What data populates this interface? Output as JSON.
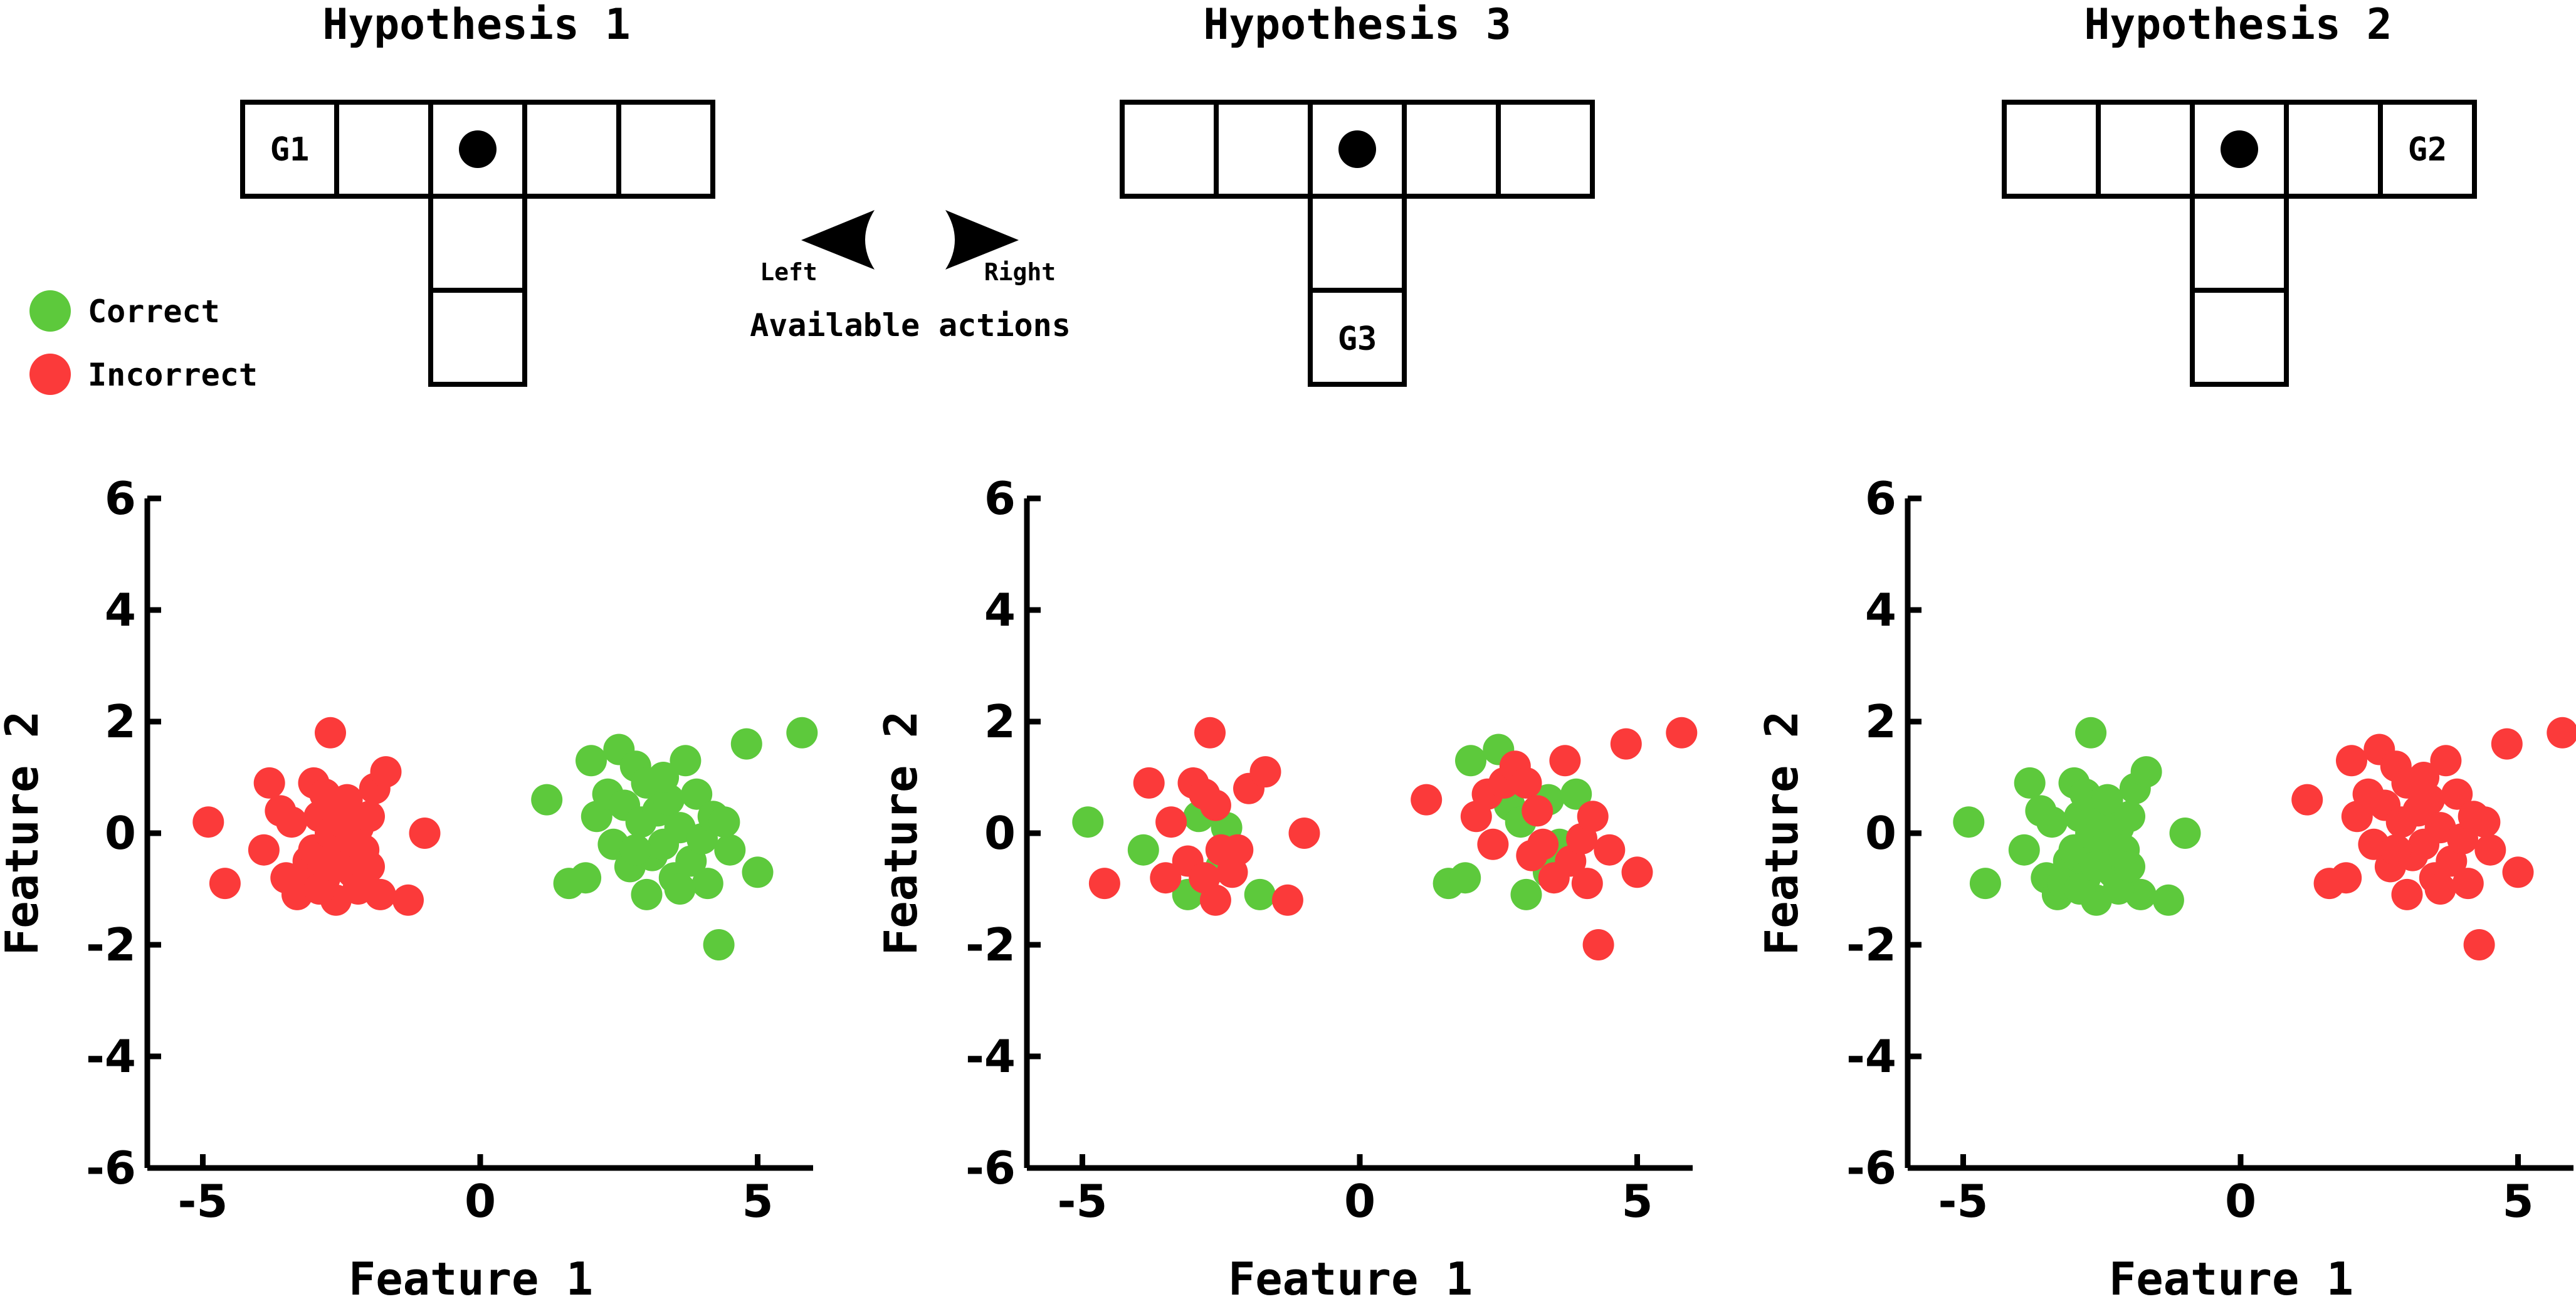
{
  "colors": {
    "correct": "#5dc93c",
    "incorrect": "#fb3a3a",
    "line": "#000000"
  },
  "legend": {
    "items": [
      {
        "label": "Correct",
        "color": "#5dc93c"
      },
      {
        "label": "Incorrect",
        "color": "#fb3a3a"
      }
    ]
  },
  "actions": {
    "left_label": "Left",
    "right_label": "Right",
    "caption": "Available actions",
    "left_icon": "arrow-left-icon",
    "right_icon": "arrow-right-icon",
    "agent_icon": "agent-dot-icon"
  },
  "hypotheses": [
    {
      "title": "Hypothesis 1",
      "goal_label": "G1",
      "goal_cell": "left-end"
    },
    {
      "title": "Hypothesis 3",
      "goal_label": "G3",
      "goal_cell": "bottom"
    },
    {
      "title": "Hypothesis 2",
      "goal_label": "G2",
      "goal_cell": "right-end"
    }
  ],
  "chart_data": [
    {
      "type": "scatter",
      "title": "",
      "xlabel": "Feature 1",
      "ylabel": "Feature 2",
      "xlim": [
        -6,
        6
      ],
      "ylim": [
        -6,
        6
      ],
      "xticks": [
        "-5",
        "0",
        "5"
      ],
      "yticks": [
        "-6",
        "-4",
        "-2",
        "0",
        "2",
        "4",
        "6"
      ],
      "xtick_values": [
        -5,
        0,
        5
      ],
      "ytick_values": [
        -6,
        -4,
        -2,
        0,
        2,
        4,
        6
      ],
      "series": [
        {
          "name": "Incorrect",
          "color": "#fb3a3a",
          "points": [
            [
              -4.9,
              0.2
            ],
            [
              -4.6,
              -0.9
            ],
            [
              -3.8,
              0.9
            ],
            [
              -3.9,
              -0.3
            ],
            [
              -3.5,
              -0.8
            ],
            [
              -3.4,
              0.2
            ],
            [
              -3.3,
              -1.1
            ],
            [
              -3.1,
              -0.5
            ],
            [
              -3.0,
              0.9
            ],
            [
              -3.0,
              -0.3
            ],
            [
              -2.9,
              0.3
            ],
            [
              -2.8,
              0.7
            ],
            [
              -2.8,
              -0.8
            ],
            [
              -2.7,
              0.0
            ],
            [
              -2.7,
              1.8
            ],
            [
              -2.6,
              -1.2
            ],
            [
              -2.6,
              0.5
            ],
            [
              -2.5,
              -0.3
            ],
            [
              -2.5,
              0.2
            ],
            [
              -2.4,
              0.6
            ],
            [
              -2.3,
              -0.7
            ],
            [
              -2.2,
              0.1
            ],
            [
              -2.1,
              -0.3
            ],
            [
              -2.0,
              0.3
            ],
            [
              -1.9,
              0.8
            ],
            [
              -1.8,
              -1.1
            ],
            [
              -1.7,
              1.1
            ],
            [
              -1.3,
              -1.2
            ],
            [
              -1.0,
              0.0
            ],
            [
              -3.2,
              -0.9
            ],
            [
              -2.9,
              -1.0
            ],
            [
              -2.2,
              -1.0
            ],
            [
              -3.6,
              0.4
            ],
            [
              -2.6,
              -0.6
            ],
            [
              -2.0,
              -0.6
            ]
          ]
        },
        {
          "name": "Correct",
          "color": "#5dc93c",
          "points": [
            [
              1.2,
              0.6
            ],
            [
              1.6,
              -0.9
            ],
            [
              1.9,
              -0.8
            ],
            [
              2.0,
              1.3
            ],
            [
              2.1,
              0.3
            ],
            [
              2.3,
              0.7
            ],
            [
              2.4,
              -0.2
            ],
            [
              2.5,
              1.5
            ],
            [
              2.6,
              0.5
            ],
            [
              2.7,
              -0.6
            ],
            [
              2.8,
              1.2
            ],
            [
              2.9,
              0.2
            ],
            [
              3.0,
              -1.1
            ],
            [
              3.0,
              0.9
            ],
            [
              3.1,
              -0.4
            ],
            [
              3.2,
              0.4
            ],
            [
              3.3,
              -0.2
            ],
            [
              3.4,
              0.6
            ],
            [
              3.5,
              -0.8
            ],
            [
              3.6,
              0.1
            ],
            [
              3.7,
              1.3
            ],
            [
              3.8,
              -0.5
            ],
            [
              3.9,
              0.7
            ],
            [
              4.0,
              -0.1
            ],
            [
              4.1,
              -0.9
            ],
            [
              4.2,
              0.3
            ],
            [
              4.3,
              -2.0
            ],
            [
              4.5,
              -0.3
            ],
            [
              4.8,
              1.6
            ],
            [
              5.0,
              -0.7
            ],
            [
              5.8,
              1.8
            ],
            [
              3.3,
              1.0
            ],
            [
              2.8,
              -0.3
            ],
            [
              3.6,
              -1.0
            ],
            [
              4.4,
              0.2
            ]
          ]
        }
      ]
    },
    {
      "type": "scatter",
      "title": "",
      "xlabel": "Feature 1",
      "ylabel": "Feature 2",
      "xlim": [
        -6,
        6
      ],
      "ylim": [
        -6,
        6
      ],
      "xticks": [
        "-5",
        "0",
        "5"
      ],
      "yticks": [
        "-6",
        "-4",
        "-2",
        "0",
        "2",
        "4",
        "6"
      ],
      "xtick_values": [
        -5,
        0,
        5
      ],
      "ytick_values": [
        -6,
        -4,
        -2,
        0,
        2,
        4,
        6
      ],
      "series": [
        {
          "name": "Correct",
          "color": "#5dc93c",
          "points": [
            [
              -4.9,
              0.2
            ],
            [
              -3.9,
              -0.3
            ],
            [
              -3.1,
              -1.1
            ],
            [
              -2.9,
              0.3
            ],
            [
              -2.5,
              -0.6
            ],
            [
              -2.4,
              0.1
            ],
            [
              -1.8,
              -1.1
            ],
            [
              1.6,
              -0.9
            ],
            [
              1.9,
              -0.8
            ],
            [
              2.0,
              1.3
            ],
            [
              2.5,
              1.5
            ],
            [
              2.7,
              0.5
            ],
            [
              2.9,
              0.2
            ],
            [
              3.0,
              -1.1
            ],
            [
              3.4,
              0.6
            ],
            [
              3.6,
              -0.2
            ],
            [
              3.9,
              0.7
            ],
            [
              3.4,
              -0.7
            ]
          ]
        },
        {
          "name": "Incorrect",
          "color": "#fb3a3a",
          "points": [
            [
              -4.6,
              -0.9
            ],
            [
              -3.8,
              0.9
            ],
            [
              -3.5,
              -0.8
            ],
            [
              -3.4,
              0.2
            ],
            [
              -3.1,
              -0.5
            ],
            [
              -3.0,
              0.9
            ],
            [
              -2.8,
              0.7
            ],
            [
              -2.8,
              -0.8
            ],
            [
              -2.7,
              1.8
            ],
            [
              -2.6,
              -1.2
            ],
            [
              -2.6,
              0.5
            ],
            [
              -2.5,
              -0.3
            ],
            [
              -2.3,
              -0.7
            ],
            [
              -2.2,
              -0.3
            ],
            [
              -2.0,
              0.8
            ],
            [
              -1.7,
              1.1
            ],
            [
              -1.3,
              -1.2
            ],
            [
              -1.0,
              0.0
            ],
            [
              1.2,
              0.6
            ],
            [
              2.1,
              0.3
            ],
            [
              2.3,
              0.7
            ],
            [
              2.4,
              -0.2
            ],
            [
              2.6,
              0.9
            ],
            [
              2.8,
              1.2
            ],
            [
              3.0,
              0.9
            ],
            [
              3.1,
              -0.4
            ],
            [
              3.2,
              0.4
            ],
            [
              3.3,
              -0.2
            ],
            [
              3.5,
              -0.8
            ],
            [
              3.7,
              1.3
            ],
            [
              3.8,
              -0.5
            ],
            [
              4.0,
              -0.1
            ],
            [
              4.1,
              -0.9
            ],
            [
              4.2,
              0.3
            ],
            [
              4.3,
              -2.0
            ],
            [
              4.5,
              -0.3
            ],
            [
              4.8,
              1.6
            ],
            [
              5.0,
              -0.7
            ],
            [
              5.8,
              1.8
            ]
          ]
        }
      ]
    },
    {
      "type": "scatter",
      "title": "",
      "xlabel": "Feature 1",
      "ylabel": "Feature 2",
      "xlim": [
        -6,
        6
      ],
      "ylim": [
        -6,
        6
      ],
      "xticks": [
        "-5",
        "0",
        "5"
      ],
      "yticks": [
        "-6",
        "-4",
        "-2",
        "0",
        "2",
        "4",
        "6"
      ],
      "xtick_values": [
        -5,
        0,
        5
      ],
      "ytick_values": [
        -6,
        -4,
        -2,
        0,
        2,
        4,
        6
      ],
      "series": [
        {
          "name": "Correct",
          "color": "#5dc93c",
          "points": [
            [
              -4.9,
              0.2
            ],
            [
              -4.6,
              -0.9
            ],
            [
              -3.8,
              0.9
            ],
            [
              -3.9,
              -0.3
            ],
            [
              -3.5,
              -0.8
            ],
            [
              -3.4,
              0.2
            ],
            [
              -3.3,
              -1.1
            ],
            [
              -3.1,
              -0.5
            ],
            [
              -3.0,
              0.9
            ],
            [
              -3.0,
              -0.3
            ],
            [
              -2.9,
              0.3
            ],
            [
              -2.8,
              0.7
            ],
            [
              -2.8,
              -0.8
            ],
            [
              -2.7,
              0.0
            ],
            [
              -2.7,
              1.8
            ],
            [
              -2.6,
              -1.2
            ],
            [
              -2.6,
              0.5
            ],
            [
              -2.5,
              -0.3
            ],
            [
              -2.5,
              0.2
            ],
            [
              -2.4,
              0.6
            ],
            [
              -2.3,
              -0.7
            ],
            [
              -2.2,
              0.1
            ],
            [
              -2.1,
              -0.3
            ],
            [
              -2.0,
              0.3
            ],
            [
              -1.9,
              0.8
            ],
            [
              -1.8,
              -1.1
            ],
            [
              -1.7,
              1.1
            ],
            [
              -1.3,
              -1.2
            ],
            [
              -1.0,
              0.0
            ],
            [
              -3.2,
              -0.9
            ],
            [
              -2.9,
              -1.0
            ],
            [
              -2.2,
              -1.0
            ],
            [
              -3.6,
              0.4
            ],
            [
              -2.6,
              -0.6
            ],
            [
              -2.0,
              -0.6
            ]
          ]
        },
        {
          "name": "Incorrect",
          "color": "#fb3a3a",
          "points": [
            [
              1.2,
              0.6
            ],
            [
              1.6,
              -0.9
            ],
            [
              1.9,
              -0.8
            ],
            [
              2.0,
              1.3
            ],
            [
              2.1,
              0.3
            ],
            [
              2.3,
              0.7
            ],
            [
              2.4,
              -0.2
            ],
            [
              2.5,
              1.5
            ],
            [
              2.6,
              0.5
            ],
            [
              2.7,
              -0.6
            ],
            [
              2.8,
              1.2
            ],
            [
              2.9,
              0.2
            ],
            [
              3.0,
              -1.1
            ],
            [
              3.0,
              0.9
            ],
            [
              3.1,
              -0.4
            ],
            [
              3.2,
              0.4
            ],
            [
              3.3,
              -0.2
            ],
            [
              3.4,
              0.6
            ],
            [
              3.5,
              -0.8
            ],
            [
              3.6,
              0.1
            ],
            [
              3.7,
              1.3
            ],
            [
              3.8,
              -0.5
            ],
            [
              3.9,
              0.7
            ],
            [
              4.0,
              -0.1
            ],
            [
              4.1,
              -0.9
            ],
            [
              4.2,
              0.3
            ],
            [
              4.3,
              -2.0
            ],
            [
              4.5,
              -0.3
            ],
            [
              4.8,
              1.6
            ],
            [
              5.0,
              -0.7
            ],
            [
              5.8,
              1.8
            ],
            [
              3.3,
              1.0
            ],
            [
              2.8,
              -0.3
            ],
            [
              3.6,
              -1.0
            ],
            [
              4.4,
              0.2
            ]
          ]
        }
      ]
    }
  ]
}
